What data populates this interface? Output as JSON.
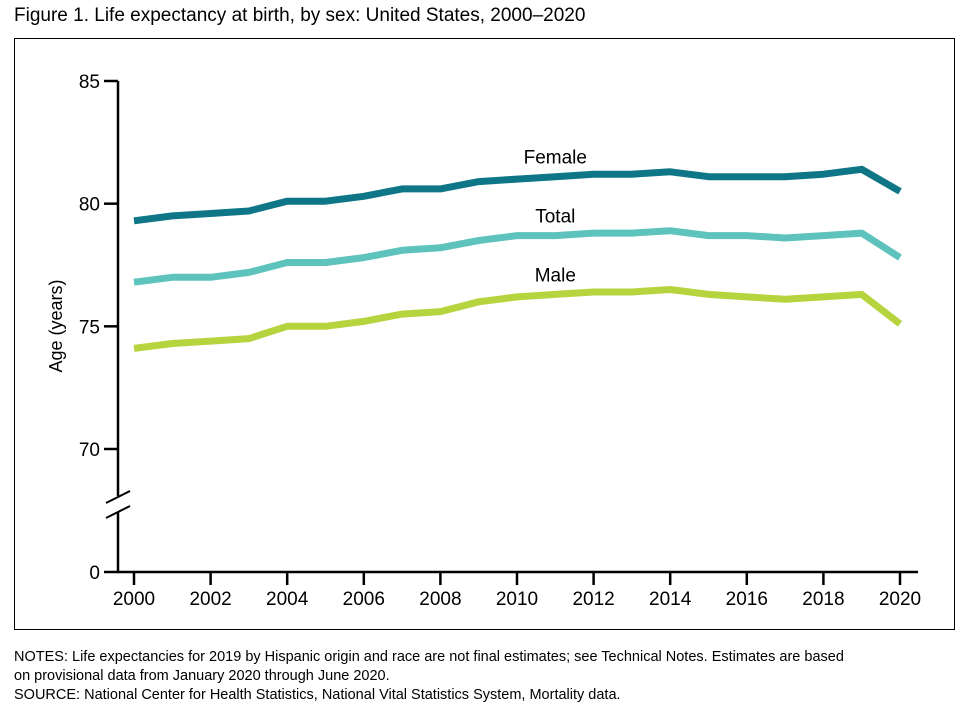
{
  "chart_data": {
    "type": "line",
    "title": "Figure 1. Life expectancy at birth, by sex: United States, 2000–2020",
    "xlabel": "",
    "ylabel": "Age (years)",
    "x": [
      2000,
      2001,
      2002,
      2003,
      2004,
      2005,
      2006,
      2007,
      2008,
      2009,
      2010,
      2011,
      2012,
      2013,
      2014,
      2015,
      2016,
      2017,
      2018,
      2019,
      2020
    ],
    "x_ticks": [
      "2000",
      "2002",
      "2004",
      "2006",
      "2008",
      "2010",
      "2012",
      "2014",
      "2016",
      "2018",
      "2020"
    ],
    "y_ticks": [
      "85",
      "80",
      "75",
      "70",
      "0"
    ],
    "ylim": [
      70,
      85
    ],
    "y_axis_break": true,
    "grid": false,
    "legend": "inline labels",
    "series": [
      {
        "name": "Female",
        "color": "#0e7686",
        "values": [
          79.3,
          79.5,
          79.6,
          79.7,
          80.1,
          80.1,
          80.3,
          80.6,
          80.6,
          80.9,
          81.0,
          81.1,
          81.2,
          81.2,
          81.3,
          81.1,
          81.1,
          81.1,
          81.2,
          81.4,
          80.5
        ]
      },
      {
        "name": "Total",
        "color": "#5fc3bd",
        "values": [
          76.8,
          77.0,
          77.0,
          77.2,
          77.6,
          77.6,
          77.8,
          78.1,
          78.2,
          78.5,
          78.7,
          78.7,
          78.8,
          78.8,
          78.9,
          78.7,
          78.7,
          78.6,
          78.7,
          78.8,
          77.8
        ]
      },
      {
        "name": "Male",
        "color": "#b6d43e",
        "values": [
          74.1,
          74.3,
          74.4,
          74.5,
          75.0,
          75.0,
          75.2,
          75.5,
          75.6,
          76.0,
          76.2,
          76.3,
          76.4,
          76.4,
          76.5,
          76.3,
          76.2,
          76.1,
          76.2,
          76.3,
          75.1
        ]
      }
    ]
  },
  "notes": {
    "line1": "NOTES: Life expectancies for 2019 by Hispanic origin and race are not final estimates; see Technical Notes. Estimates are based",
    "line2": "on provisional data from January 2020 through June 2020.",
    "line3": "SOURCE: National Center for Health Statistics, National Vital Statistics System, Mortality data."
  }
}
